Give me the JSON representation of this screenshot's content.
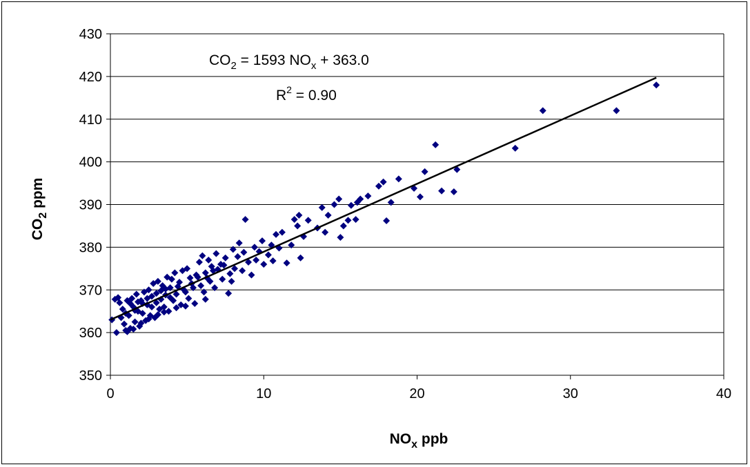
{
  "chart_data": {
    "type": "scatter",
    "xlabel": "NO",
    "xlabel_sub": "x",
    "xlabel_tail": " ppb",
    "ylabel": "CO",
    "ylabel_sub": "2",
    "ylabel_tail": "  ppm",
    "xlim": [
      0,
      40
    ],
    "ylim": [
      350,
      430
    ],
    "xticks": [
      "0",
      "10",
      "20",
      "30",
      "40"
    ],
    "yticks": [
      "350",
      "360",
      "370",
      "380",
      "390",
      "400",
      "410",
      "420",
      "430"
    ],
    "grid": "horizontal",
    "legend": "none",
    "colors": {
      "points": "#000080",
      "fit_line": "#000000",
      "grid": "#000000"
    },
    "fit_line": {
      "slope": 1593,
      "intercept": 363.0,
      "x_range": [
        0,
        35.6
      ]
    },
    "annotations": {
      "equation_lhs": "CO",
      "equation_lhs_sub": "2",
      "equation_mid": " = 1593 NO",
      "equation_mid_sub": "x",
      "equation_tail": " + 363.0",
      "r2_base": "R",
      "r2_sup": "2",
      "r2_tail": " = 0.90"
    },
    "points": [
      [
        0.1,
        363.0
      ],
      [
        0.4,
        360.0
      ],
      [
        0.5,
        368.2
      ],
      [
        0.6,
        367.0
      ],
      [
        0.8,
        365.5
      ],
      [
        0.9,
        362.0
      ],
      [
        1.0,
        360.5
      ],
      [
        1.1,
        367.5
      ],
      [
        1.2,
        364.0
      ],
      [
        1.3,
        361.0
      ],
      [
        1.4,
        368.0
      ],
      [
        1.5,
        366.0
      ],
      [
        1.6,
        362.5
      ],
      [
        1.7,
        369.0
      ],
      [
        1.8,
        365.0
      ],
      [
        1.9,
        361.5
      ],
      [
        2.0,
        367.5
      ],
      [
        2.1,
        364.5
      ],
      [
        2.2,
        369.5
      ],
      [
        2.3,
        362.8
      ],
      [
        2.4,
        366.5
      ],
      [
        2.5,
        370.0
      ],
      [
        2.6,
        364.0
      ],
      [
        2.7,
        368.5
      ],
      [
        2.8,
        371.5
      ],
      [
        2.9,
        363.5
      ],
      [
        3.0,
        367.0
      ],
      [
        3.1,
        372.0
      ],
      [
        3.2,
        365.5
      ],
      [
        3.3,
        369.8
      ],
      [
        3.4,
        371.0
      ],
      [
        3.5,
        366.0
      ],
      [
        3.6,
        368.8
      ],
      [
        3.7,
        373.0
      ],
      [
        3.8,
        365.0
      ],
      [
        3.9,
        370.5
      ],
      [
        4.0,
        372.5
      ],
      [
        4.1,
        367.5
      ],
      [
        4.2,
        374.0
      ],
      [
        4.3,
        369.0
      ],
      [
        4.5,
        371.8
      ],
      [
        4.6,
        366.5
      ],
      [
        4.7,
        374.5
      ],
      [
        4.8,
        370.0
      ],
      [
        5.0,
        375.0
      ],
      [
        5.1,
        368.0
      ],
      [
        5.2,
        372.8
      ],
      [
        5.4,
        370.5
      ],
      [
        5.5,
        366.8
      ],
      [
        5.6,
        373.5
      ],
      [
        5.8,
        376.5
      ],
      [
        5.9,
        371.0
      ],
      [
        6.0,
        378.0
      ],
      [
        6.1,
        369.5
      ],
      [
        6.2,
        374.0
      ],
      [
        6.4,
        377.0
      ],
      [
        6.5,
        372.0
      ],
      [
        6.6,
        375.5
      ],
      [
        6.8,
        370.5
      ],
      [
        6.9,
        378.5
      ],
      [
        7.0,
        374.8
      ],
      [
        7.2,
        376.0
      ],
      [
        7.3,
        372.5
      ],
      [
        7.5,
        377.5
      ],
      [
        7.7,
        369.2
      ],
      [
        7.8,
        373.8
      ],
      [
        8.0,
        379.5
      ],
      [
        8.1,
        375.0
      ],
      [
        8.3,
        377.8
      ],
      [
        8.4,
        381.0
      ],
      [
        8.6,
        374.5
      ],
      [
        8.7,
        378.8
      ],
      [
        8.8,
        386.5
      ],
      [
        9.0,
        376.5
      ],
      [
        9.2,
        373.5
      ],
      [
        9.4,
        380.0
      ],
      [
        9.5,
        377.0
      ],
      [
        9.7,
        379.0
      ],
      [
        9.9,
        381.5
      ],
      [
        10.0,
        376.0
      ],
      [
        10.3,
        378.2
      ],
      [
        10.5,
        380.5
      ],
      [
        10.6,
        376.8
      ],
      [
        10.8,
        383.0
      ],
      [
        11.0,
        379.8
      ],
      [
        11.2,
        383.5
      ],
      [
        11.5,
        376.3
      ],
      [
        11.8,
        380.5
      ],
      [
        12.0,
        386.5
      ],
      [
        12.2,
        385.0
      ],
      [
        12.3,
        387.5
      ],
      [
        12.4,
        377.5
      ],
      [
        12.6,
        382.5
      ],
      [
        12.9,
        386.3
      ],
      [
        13.5,
        384.5
      ],
      [
        13.8,
        389.3
      ],
      [
        14.0,
        383.5
      ],
      [
        14.2,
        387.5
      ],
      [
        14.6,
        390.0
      ],
      [
        14.9,
        391.3
      ],
      [
        15.0,
        382.3
      ],
      [
        15.2,
        385.0
      ],
      [
        15.5,
        386.3
      ],
      [
        15.7,
        389.8
      ],
      [
        16.0,
        386.5
      ],
      [
        16.1,
        390.5
      ],
      [
        16.3,
        391.3
      ],
      [
        16.8,
        392.0
      ],
      [
        17.5,
        394.3
      ],
      [
        17.8,
        395.3
      ],
      [
        18.0,
        386.2
      ],
      [
        18.3,
        390.5
      ],
      [
        18.8,
        396.0
      ],
      [
        19.8,
        393.8
      ],
      [
        20.2,
        391.8
      ],
      [
        20.5,
        397.7
      ],
      [
        21.2,
        404.0
      ],
      [
        21.6,
        393.2
      ],
      [
        22.4,
        393.0
      ],
      [
        22.6,
        398.2
      ],
      [
        26.4,
        403.2
      ],
      [
        28.2,
        412.0
      ],
      [
        33.0,
        412.0
      ],
      [
        35.6,
        418.0
      ],
      [
        0.3,
        367.8
      ],
      [
        0.7,
        363.5
      ],
      [
        1.0,
        364.5
      ],
      [
        1.3,
        366.8
      ],
      [
        1.6,
        365.2
      ],
      [
        1.8,
        367.2
      ],
      [
        2.1,
        366.8
      ],
      [
        2.4,
        368.0
      ],
      [
        2.7,
        366.0
      ],
      [
        3.0,
        369.2
      ],
      [
        3.3,
        367.8
      ],
      [
        3.6,
        370.2
      ],
      [
        3.9,
        368.2
      ],
      [
        4.4,
        370.8
      ],
      [
        4.9,
        369.5
      ],
      [
        5.3,
        371.5
      ],
      [
        5.7,
        373.0
      ],
      [
        6.3,
        372.8
      ],
      [
        6.7,
        374.5
      ],
      [
        7.4,
        375.8
      ],
      [
        1.1,
        360.2
      ],
      [
        1.5,
        360.8
      ],
      [
        2.0,
        362.2
      ],
      [
        2.5,
        363.2
      ],
      [
        3.1,
        364.2
      ],
      [
        3.5,
        364.8
      ],
      [
        4.3,
        365.8
      ],
      [
        4.9,
        366.2
      ],
      [
        6.2,
        367.8
      ],
      [
        7.9,
        372.0
      ]
    ]
  }
}
